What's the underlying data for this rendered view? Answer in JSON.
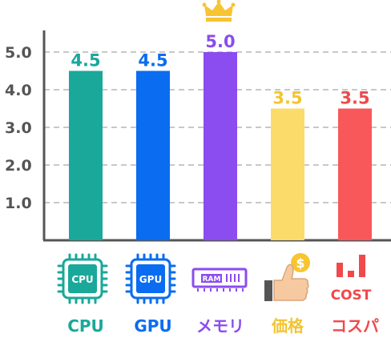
{
  "chart_data": {
    "type": "bar",
    "title": "",
    "xlabel": "",
    "ylabel": "",
    "ylim": [
      0,
      5.5
    ],
    "yticks": [
      "1.0",
      "2.0",
      "3.0",
      "4.0",
      "5.0"
    ],
    "grid": true,
    "categories": [
      "CPU",
      "GPU",
      "メモリ",
      "価格",
      "コスパ"
    ],
    "values": [
      4.5,
      4.5,
      5.0,
      3.5,
      3.5
    ],
    "value_labels": [
      "4.5",
      "4.5",
      "5.0",
      "3.5",
      "3.5"
    ],
    "colors": [
      "#1aa89a",
      "#0a6cf1",
      "#8b4cf0",
      "#fbdb6a",
      "#f9585a"
    ],
    "label_colors": [
      "#1aa89a",
      "#0a6cf1",
      "#8b4cf0",
      "#f4c430",
      "#f0494b"
    ],
    "icons": [
      "cpu-icon",
      "gpu-icon",
      "ram-icon",
      "thumbs-up-coin-icon",
      "cost-bars-icon"
    ],
    "icon_texts": [
      "CPU",
      "GPU",
      "RAM",
      "$",
      "COST"
    ],
    "highlight": "crown-icon"
  }
}
